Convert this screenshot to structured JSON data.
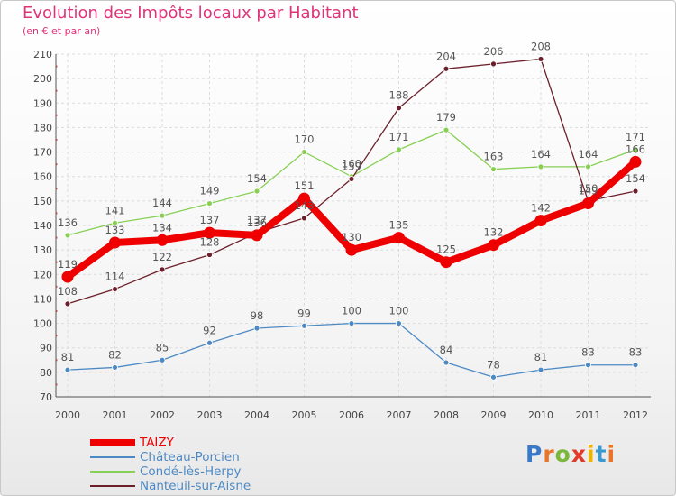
{
  "chart_data": {
    "type": "line",
    "title": "Evolution des Impôts locaux par Habitant",
    "subtitle": "(en € et par an)",
    "xlabel": "",
    "ylabel": "",
    "ylim": [
      70,
      210
    ],
    "yticks": [
      70,
      80,
      90,
      100,
      110,
      120,
      130,
      140,
      150,
      160,
      170,
      180,
      190,
      200,
      210
    ],
    "grid": true,
    "legend_position": "bottom-left",
    "x": [
      "2000",
      "2001",
      "2002",
      "2003",
      "2004",
      "2005",
      "2006",
      "2007",
      "2008",
      "2009",
      "2010",
      "2011",
      "2012"
    ],
    "series": [
      {
        "name": "TAIZY",
        "color": "#ee0000",
        "values": [
          119,
          133,
          134,
          137,
          136,
          151,
          130,
          135,
          125,
          132,
          142,
          149,
          166
        ]
      },
      {
        "name": "Château-Porcien",
        "color": "#4d8ac4",
        "values": [
          81,
          82,
          85,
          92,
          98,
          99,
          100,
          100,
          84,
          78,
          81,
          83,
          83
        ]
      },
      {
        "name": "Condé-lès-Herpy",
        "color": "#88d055",
        "values": [
          136,
          141,
          144,
          149,
          154,
          170,
          160,
          171,
          179,
          163,
          164,
          164,
          171
        ]
      },
      {
        "name": "Nanteuil-sur-Aisne",
        "color": "#6b1f2b",
        "values": [
          108,
          114,
          122,
          128,
          137,
          143,
          159,
          188,
          204,
          206,
          208,
          150,
          154
        ]
      }
    ]
  },
  "brand": {
    "letters": [
      "P",
      "r",
      "o",
      "x",
      "i",
      "t",
      "i"
    ],
    "colors": [
      "#3a78c8",
      "#e8752a",
      "#7ab83c",
      "#e23a2a",
      "#f0b400",
      "#3a9ad0",
      "#e8752a"
    ]
  }
}
